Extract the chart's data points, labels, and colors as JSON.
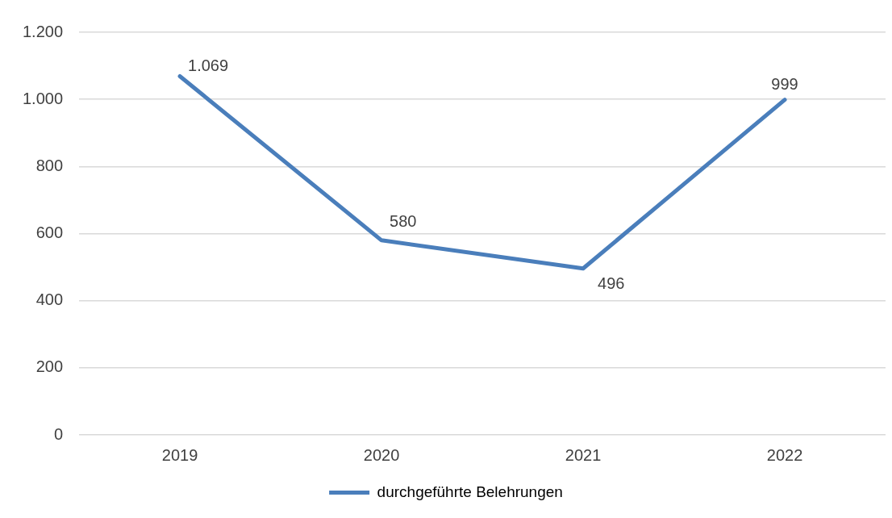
{
  "chart_data": {
    "type": "line",
    "categories": [
      "2019",
      "2020",
      "2021",
      "2022"
    ],
    "series": [
      {
        "name": "durchgeführte Belehrungen",
        "color": "#4a7ebb",
        "values": [
          1069,
          580,
          496,
          999
        ],
        "value_labels": [
          "1.069",
          "580",
          "496",
          "999"
        ]
      }
    ],
    "ylim": [
      0,
      1200
    ],
    "yticks": [
      {
        "value": 0,
        "label": "0"
      },
      {
        "value": 200,
        "label": "200"
      },
      {
        "value": 400,
        "label": "400"
      },
      {
        "value": 600,
        "label": "600"
      },
      {
        "value": 800,
        "label": "800"
      },
      {
        "value": 1000,
        "label": "1.000"
      },
      {
        "value": 1200,
        "label": "1.200"
      }
    ],
    "grid": "y",
    "legend": "bottom",
    "marker": "none",
    "line_style": "solid"
  }
}
